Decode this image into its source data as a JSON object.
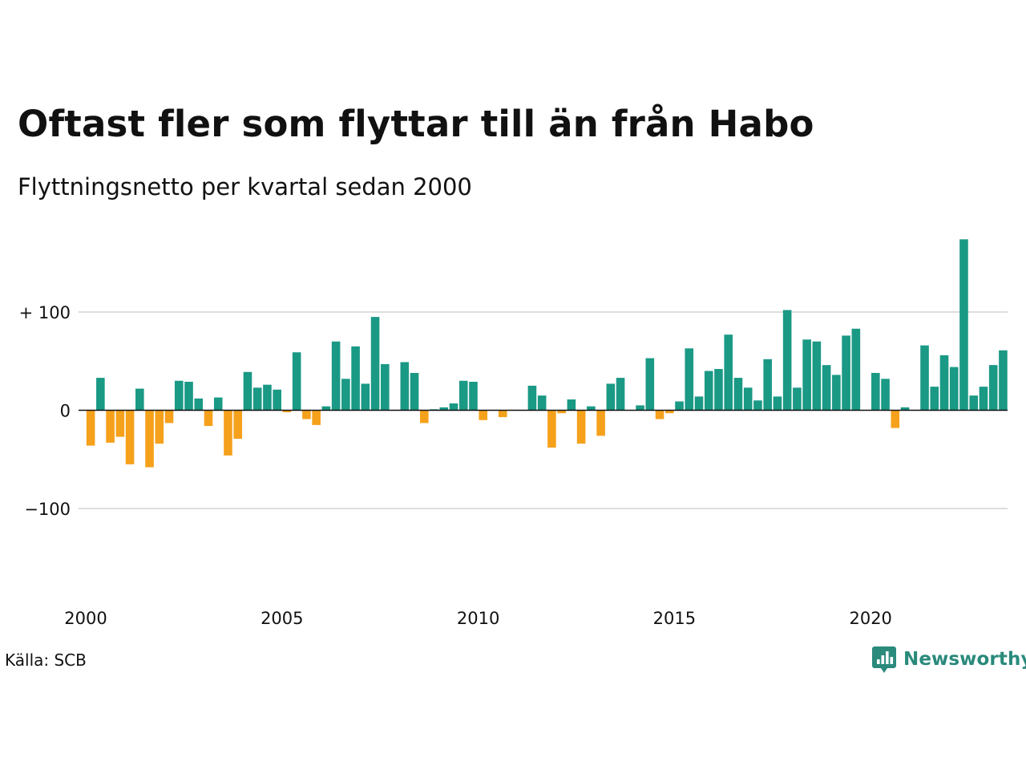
{
  "title": "Oftast fler som flyttar till än från Habo",
  "subtitle": "Flyttningsnetto per kvartal sedan 2000",
  "source": "Källa: SCB",
  "brand": {
    "name": "Newsworthy",
    "icon": "newsworthy-logo-icon"
  },
  "colors": {
    "positive": "#1a9985",
    "negative": "#f5a11c",
    "grid": "#dddddd",
    "baseline": "#111111"
  },
  "chart_data": {
    "type": "bar",
    "title": "Oftast fler som flyttar till än från Habo",
    "subtitle": "Flyttningsnetto per kvartal sedan 2000",
    "xlabel": "",
    "ylabel": "",
    "xlim": [
      2000,
      2023.75
    ],
    "ylim": [
      -180,
      180
    ],
    "y_ticks": [
      {
        "value": 100,
        "label": "+ 100"
      },
      {
        "value": 0,
        "label": "0"
      },
      {
        "value": -100,
        "label": "−100"
      }
    ],
    "x_ticks": [
      {
        "value": 2000,
        "label": "2000"
      },
      {
        "value": 2005,
        "label": "2005"
      },
      {
        "value": 2010,
        "label": "2010"
      },
      {
        "value": 2015,
        "label": "2015"
      },
      {
        "value": 2020,
        "label": "2020"
      }
    ],
    "grid": true,
    "legend": "none",
    "start_year": 2000,
    "periods_per_year": 4,
    "series": [
      {
        "values": [
          -36,
          33,
          -33,
          -27,
          -55,
          22,
          -58,
          -34,
          -13,
          30,
          29,
          12,
          -16,
          13,
          -46,
          -29,
          39,
          23,
          26,
          21,
          -2,
          59,
          -9,
          -15,
          4,
          70,
          32,
          65,
          27,
          95,
          47,
          0,
          49,
          38,
          -13,
          1,
          3,
          7,
          30,
          29,
          -10,
          0,
          -7,
          0,
          0,
          25,
          15,
          -38,
          -3,
          11,
          -34,
          4,
          -26,
          27,
          33,
          0,
          5,
          53,
          -9,
          -3,
          9,
          63,
          14,
          40,
          42,
          77,
          33,
          23,
          10,
          52,
          14,
          102,
          23,
          72,
          70,
          46,
          36,
          76,
          83,
          0,
          38,
          32,
          -18,
          3,
          0,
          66,
          24,
          56,
          44,
          174,
          15,
          24,
          46,
          61
        ]
      }
    ]
  }
}
